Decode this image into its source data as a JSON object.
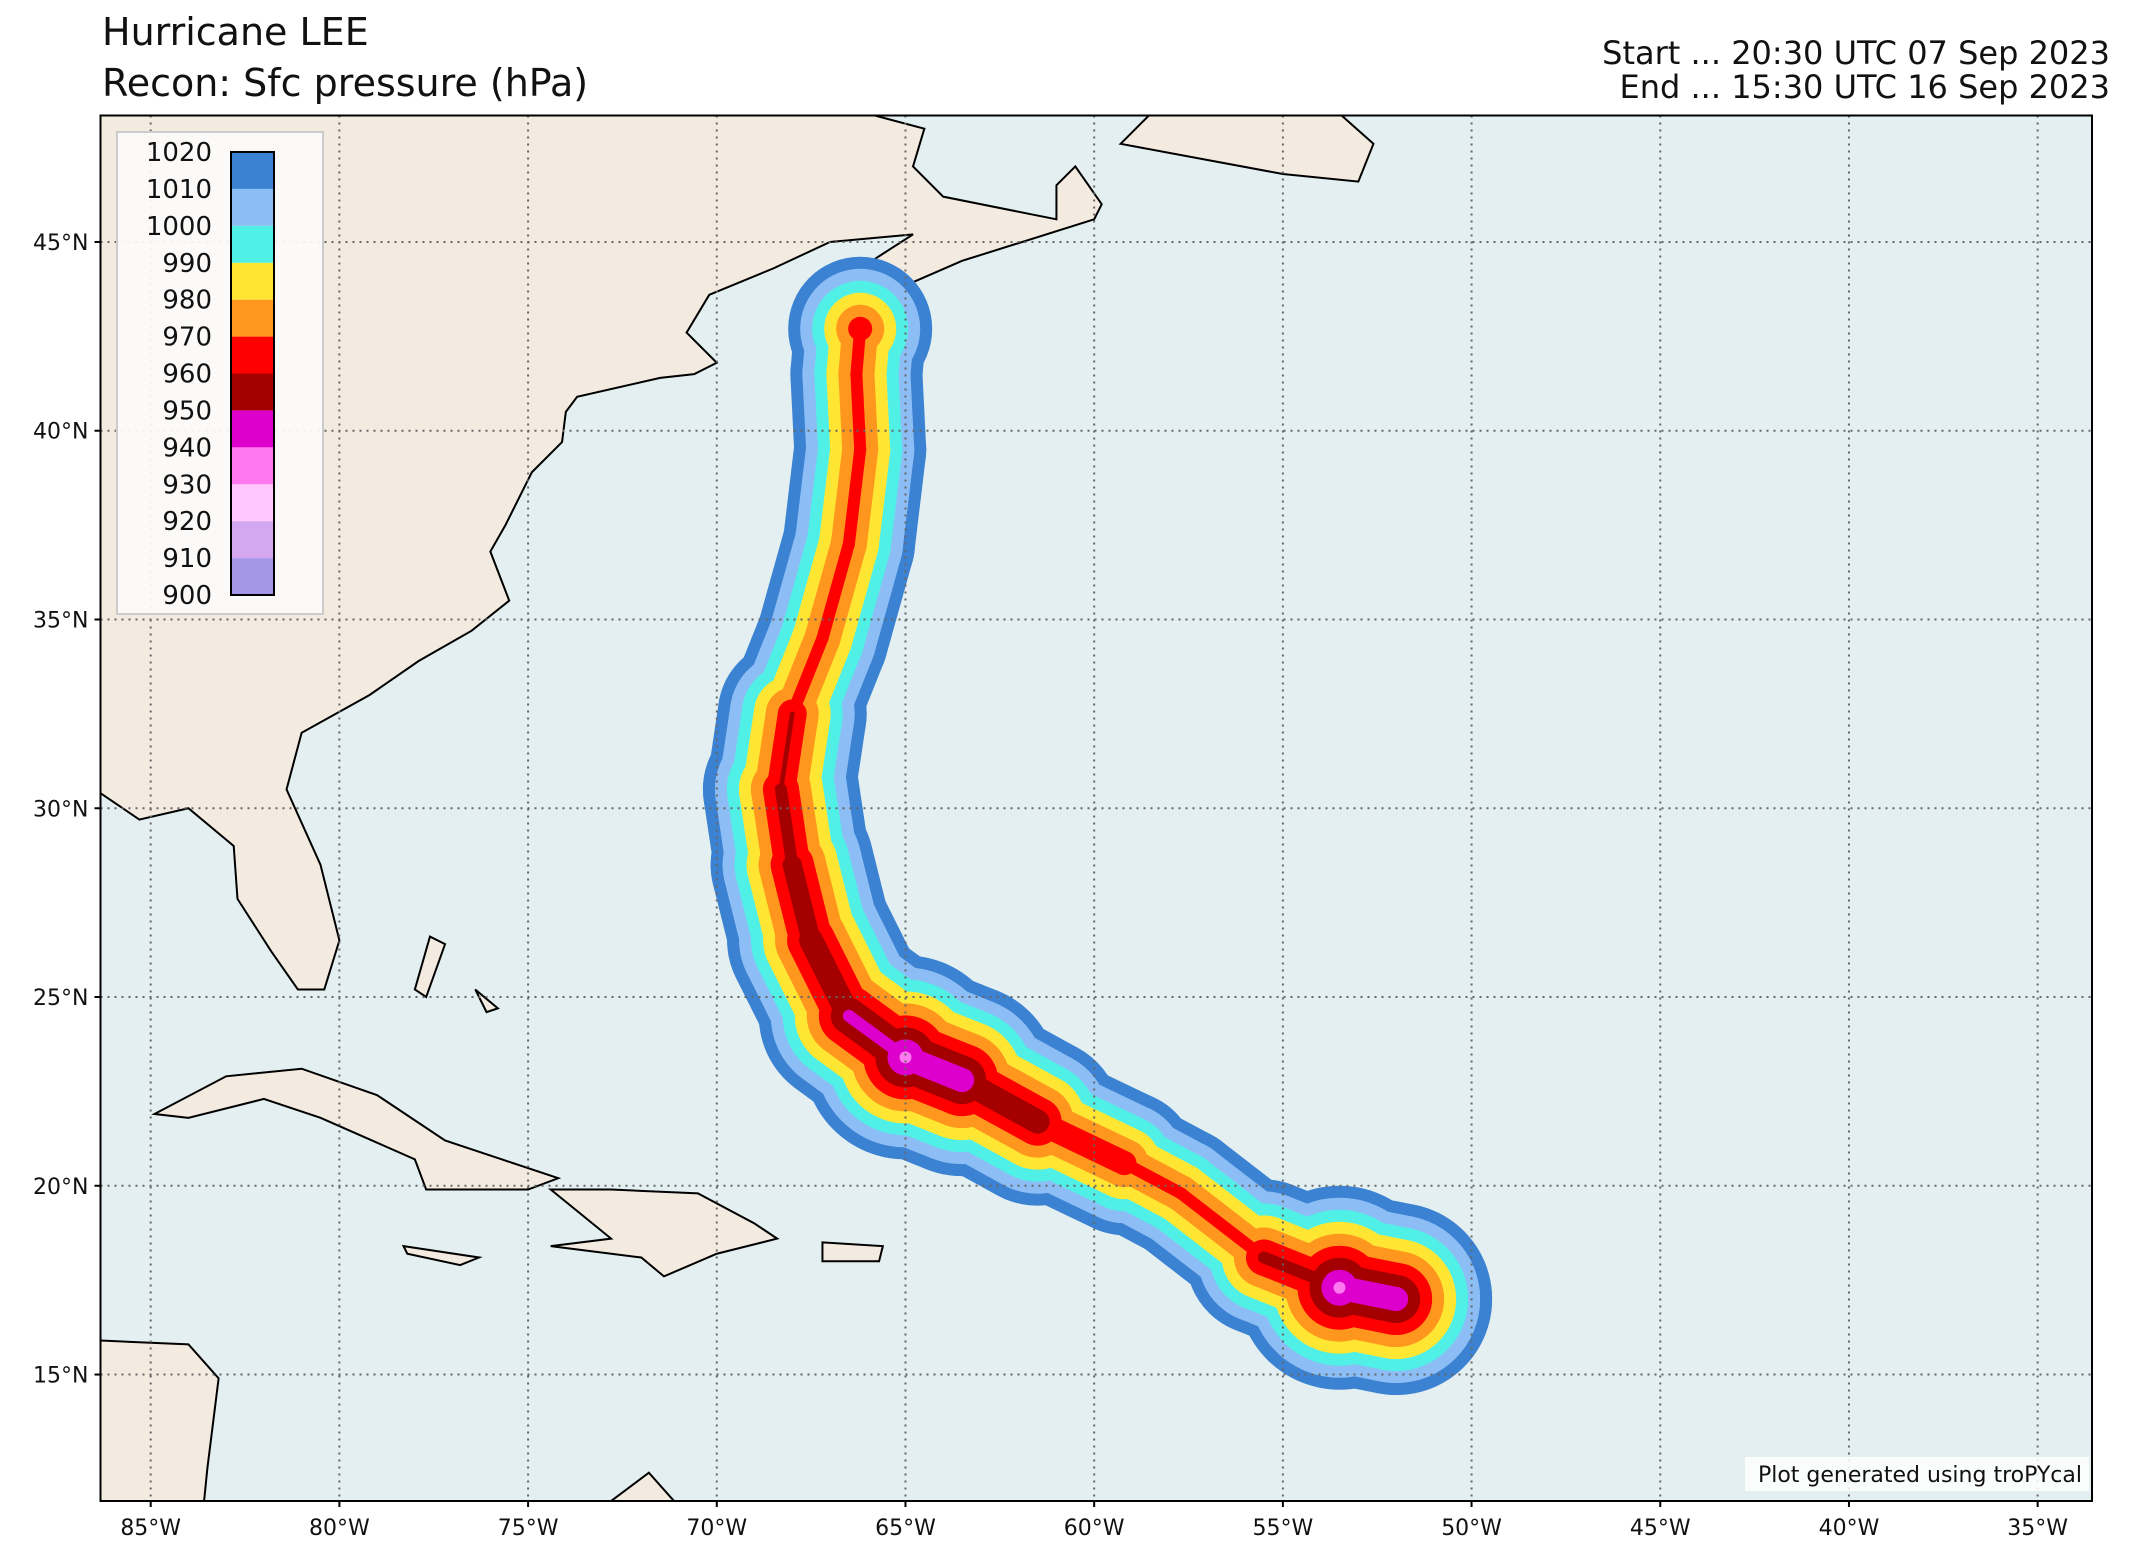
{
  "map": {
    "title": "Hurricane LEE",
    "subtitle": "Recon: Sfc pressure (hPa)",
    "start": "Start ... 20:30 UTC 07 Sep 2023",
    "end": "End ... 15:30 UTC 16 Sep 2023",
    "credit": "Plot generated using troPYcal",
    "lon_range": [
      -86.33,
      -33.56
    ],
    "lat_range": [
      11.65,
      48.35
    ],
    "lon_ticks": [
      {
        "value": -85,
        "label": "85°W"
      },
      {
        "value": -80,
        "label": "80°W"
      },
      {
        "value": -75,
        "label": "75°W"
      },
      {
        "value": -70,
        "label": "70°W"
      },
      {
        "value": -65,
        "label": "65°W"
      },
      {
        "value": -60,
        "label": "60°W"
      },
      {
        "value": -55,
        "label": "55°W"
      },
      {
        "value": -50,
        "label": "50°W"
      },
      {
        "value": -45,
        "label": "45°W"
      },
      {
        "value": -40,
        "label": "40°W"
      },
      {
        "value": -35,
        "label": "35°W"
      }
    ],
    "lat_ticks": [
      {
        "value": 15,
        "label": "15°N"
      },
      {
        "value": 20,
        "label": "20°N"
      },
      {
        "value": 25,
        "label": "25°N"
      },
      {
        "value": 30,
        "label": "30°N"
      },
      {
        "value": 35,
        "label": "35°N"
      },
      {
        "value": 40,
        "label": "40°N"
      },
      {
        "value": 45,
        "label": "45°N"
      }
    ],
    "grid": true,
    "colorbar": {
      "levels": [
        900,
        910,
        920,
        930,
        940,
        950,
        960,
        970,
        980,
        990,
        1000,
        1010,
        1020
      ],
      "colors": [
        "#a597e8",
        "#d3a8f0",
        "#ffc6ff",
        "#ff78f0",
        "#dd00cc",
        "#a50000",
        "#ff0000",
        "#ff961e",
        "#ffe632",
        "#50f0e6",
        "#8cbef5",
        "#3c82d2"
      ]
    },
    "track": {
      "lon": [
        -52.0,
        -53.5,
        -55.5,
        -57.7,
        -59.2,
        -61.5,
        -63.5,
        -65.0,
        -66.5,
        -67.5,
        -68.0,
        -68.3,
        -68.0,
        -67.2,
        -66.5,
        -66.2,
        -66.3,
        -66.2
      ],
      "lat": [
        17.0,
        17.3,
        18.1,
        19.8,
        20.6,
        21.7,
        22.8,
        23.4,
        24.5,
        26.5,
        28.5,
        30.5,
        32.5,
        34.5,
        37.0,
        39.5,
        41.5,
        42.7
      ],
      "pressure": [
        940,
        935,
        955,
        965,
        960,
        950,
        940,
        935,
        945,
        950,
        952,
        955,
        958,
        965,
        965,
        965,
        965,
        960
      ]
    }
  }
}
